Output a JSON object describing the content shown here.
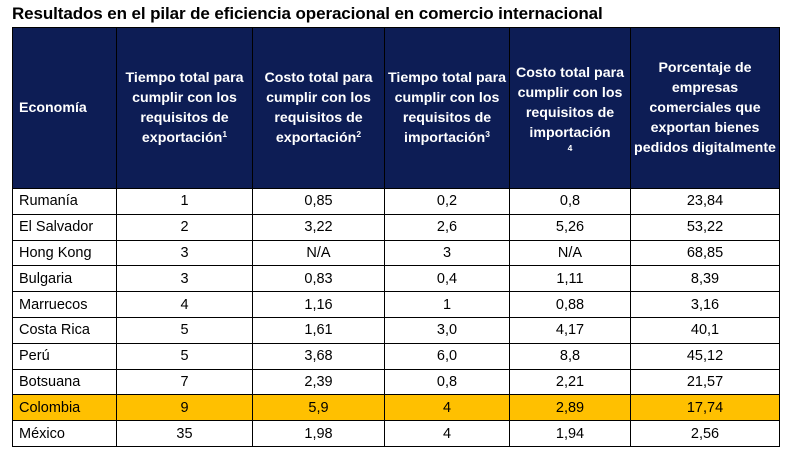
{
  "title": "Resultados en el pilar de eficiencia operacional en comercio internacional",
  "headers": [
    {
      "text": "Economía",
      "sup": ""
    },
    {
      "text": "Tiempo total para cumplir con los requisitos de exportación",
      "sup": "1"
    },
    {
      "text": "Costo total para cumplir con los requisitos de exportación",
      "sup": "2"
    },
    {
      "text": "Tiempo total para cumplir con los requisitos de importación",
      "sup": "3"
    },
    {
      "text": "Costo total para cumplir con los requisitos de importación",
      "sup": "4"
    },
    {
      "text": "Porcentaje de empresas comerciales que exportan bienes pedidos digitalmente",
      "sup": ""
    }
  ],
  "rows": [
    {
      "economy": "Rumanía",
      "values": [
        "1",
        "0,85",
        "0,2",
        "0,8",
        "23,84"
      ]
    },
    {
      "economy": "El Salvador",
      "values": [
        "2",
        "3,22",
        "2,6",
        "5,26",
        "53,22"
      ]
    },
    {
      "economy": "Hong Kong",
      "values": [
        "3",
        "N/A",
        "3",
        "N/A",
        "68,85"
      ]
    },
    {
      "economy": "Bulgaria",
      "values": [
        "3",
        "0,83",
        "0,4",
        "1,11",
        "8,39"
      ]
    },
    {
      "economy": "Marruecos",
      "values": [
        "4",
        "1,16",
        "1",
        "0,88",
        "3,16"
      ]
    },
    {
      "economy": "Costa Rica",
      "values": [
        "5",
        "1,61",
        "3,0",
        "4,17",
        "40,1"
      ]
    },
    {
      "economy": "Perú",
      "values": [
        "5",
        "3,68",
        "6,0",
        "8,8",
        "45,12"
      ]
    },
    {
      "economy": "Botsuana",
      "values": [
        "7",
        "2,39",
        "0,8",
        "2,21",
        "21,57"
      ]
    },
    {
      "economy": "Colombia",
      "values": [
        "9",
        "5,9",
        "4",
        "2,89",
        "17,74"
      ]
    },
    {
      "economy": "México",
      "values": [
        "35",
        "1,98",
        "4",
        "1,94",
        "2,56"
      ]
    }
  ],
  "highlight_row": "Colombia",
  "colors": {
    "header_bg": "#0d1d55",
    "header_text": "#ffffff",
    "highlight": "#ffc000",
    "border": "#000000"
  }
}
